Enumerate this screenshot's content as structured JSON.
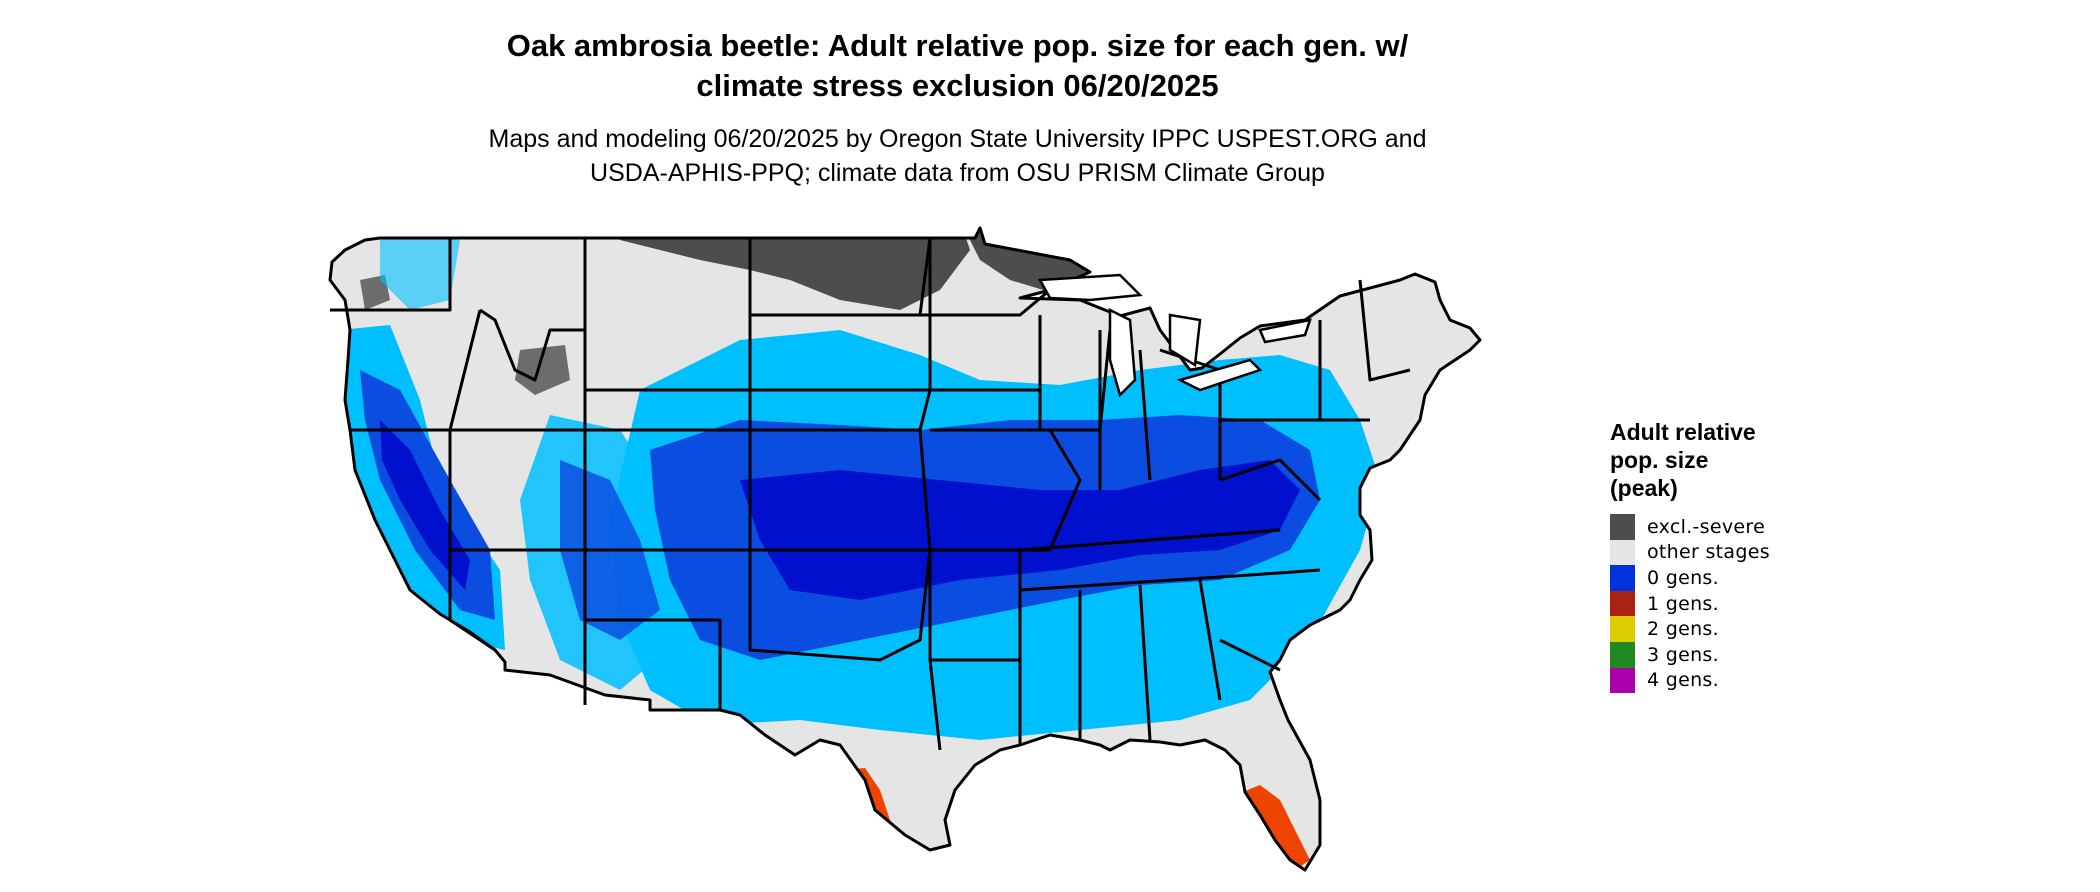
{
  "title_line1": "Oak ambrosia beetle: Adult relative pop. size for each gen. w/",
  "title_line2": "climate stress exclusion 06/20/2025",
  "subtitle_line1": "Maps and modeling 06/20/2025 by Oregon State University IPPC USPEST.ORG and",
  "subtitle_line2": "USDA-APHIS-PPQ; climate data from OSU PRISM Climate Group",
  "legend": {
    "title_line1": "Adult relative",
    "title_line2": "pop. size",
    "title_line3": "(peak)",
    "items": [
      {
        "label": "excl.-severe",
        "color": "#4d4d4d"
      },
      {
        "label": "other stages",
        "color": "#e5e5e5"
      },
      {
        "label": "0 gens.",
        "color": "#0033dd"
      },
      {
        "label": "1 gens.",
        "color": "#aa2211"
      },
      {
        "label": "2 gens.",
        "color": "#ddcc00"
      },
      {
        "label": "3 gens.",
        "color": "#228822"
      },
      {
        "label": "4 gens.",
        "color": "#aa00aa"
      }
    ]
  },
  "map_colors": {
    "land": "#e5e5e5",
    "excluded": "#4d4d4d",
    "light_blue": "#00bfff",
    "mid_blue": "#0a4de0",
    "deep_blue": "#0010cc",
    "orange": "#ee4400",
    "border": "#000000"
  }
}
